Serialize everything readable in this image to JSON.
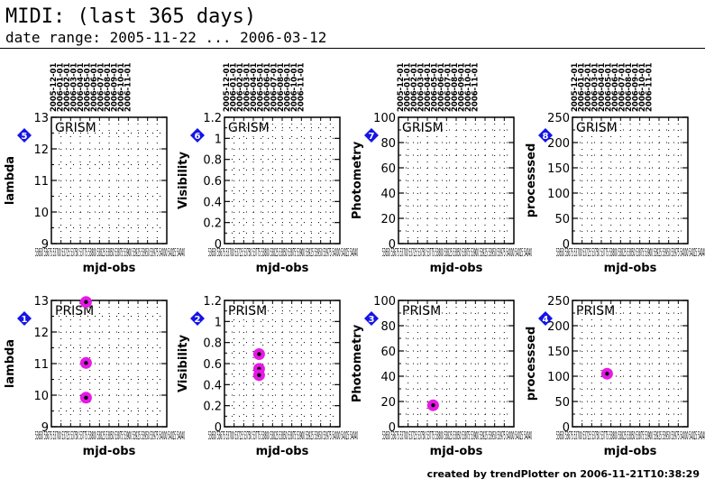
{
  "header": {
    "title": "MIDI: (last 365 days)",
    "subtitle": "date range: 2005-11-22 ... 2006-03-12"
  },
  "footer": {
    "text": "created by trendPlotter on 2006-11-21T10:38:29"
  },
  "colors": {
    "point": "#e619e6",
    "point_center": "#000000",
    "badge": "#1414e6",
    "grid": "#000000"
  },
  "date_labels": [
    "2005-12-01",
    "2006-01-01",
    "2006-02-01",
    "2006-03-01",
    "2006-04-01",
    "2006-05-01",
    "2006-06-01",
    "2006-07-01",
    "2006-08-01",
    "2006-09-01",
    "2006-10-01",
    "2006-11-01"
  ],
  "chart_data": [
    {
      "type": "scatter",
      "badge": "5",
      "label": "GRISM",
      "ylabel": "lambda",
      "xlabel": "mjd-obs",
      "yticks": [
        "9",
        "10",
        "11",
        "12",
        "13"
      ],
      "ylim": [
        9,
        13
      ],
      "points": []
    },
    {
      "type": "scatter",
      "badge": "6",
      "label": "GRISM",
      "ylabel": "Visibility",
      "xlabel": "mjd-obs",
      "yticks": [
        "0",
        "0.2",
        "0.4",
        "0.6",
        "0.8",
        "1",
        "1.2"
      ],
      "ylim": [
        0,
        1.2
      ],
      "points": []
    },
    {
      "type": "scatter",
      "badge": "7",
      "label": "GRISM",
      "ylabel": "Photometry",
      "xlabel": "mjd-obs",
      "yticks": [
        "0",
        "20",
        "40",
        "60",
        "80",
        "100"
      ],
      "ylim": [
        0,
        100
      ],
      "points": []
    },
    {
      "type": "scatter",
      "badge": "8",
      "label": "GRISM",
      "ylabel": "processsed",
      "xlabel": "mjd-obs",
      "yticks": [
        "0",
        "50",
        "100",
        "150",
        "200",
        "250"
      ],
      "ylim": [
        0,
        250
      ],
      "points": []
    },
    {
      "type": "scatter",
      "badge": "1",
      "label": "PRISM",
      "ylabel": "lambda",
      "xlabel": "mjd-obs",
      "yticks": [
        "9",
        "10",
        "11",
        "12",
        "13"
      ],
      "ylim": [
        9,
        13
      ],
      "points": [
        {
          "x": 0.3,
          "y": 12.95
        },
        {
          "x": 0.3,
          "y": 11.02
        },
        {
          "x": 0.3,
          "y": 9.92
        }
      ]
    },
    {
      "type": "scatter",
      "badge": "2",
      "label": "PRISM",
      "ylabel": "Visibility",
      "xlabel": "mjd-obs",
      "yticks": [
        "0",
        "0.2",
        "0.4",
        "0.6",
        "0.8",
        "1",
        "1.2"
      ],
      "ylim": [
        0,
        1.2
      ],
      "points": [
        {
          "x": 0.3,
          "y": 0.69
        },
        {
          "x": 0.3,
          "y": 0.55
        },
        {
          "x": 0.3,
          "y": 0.49
        }
      ]
    },
    {
      "type": "scatter",
      "badge": "3",
      "label": "PRISM",
      "ylabel": "Photometry",
      "xlabel": "mjd-obs",
      "yticks": [
        "0",
        "20",
        "40",
        "60",
        "80",
        "100"
      ],
      "ylim": [
        0,
        100
      ],
      "points": [
        {
          "x": 0.3,
          "y": 17
        }
      ]
    },
    {
      "type": "scatter",
      "badge": "4",
      "label": "PRISM",
      "ylabel": "processsed",
      "xlabel": "mjd-obs",
      "yticks": [
        "0",
        "50",
        "100",
        "150",
        "200",
        "250"
      ],
      "ylim": [
        0,
        250
      ],
      "points": [
        {
          "x": 0.3,
          "y": 105
        }
      ]
    }
  ],
  "xtick_text": "53650 53675 53700 53725 53750 53775 53800 53825 53850 53875 53900 53925 53950 53975 54000 54025 54040",
  "xtick_first": "53",
  "xtick_last": "40"
}
